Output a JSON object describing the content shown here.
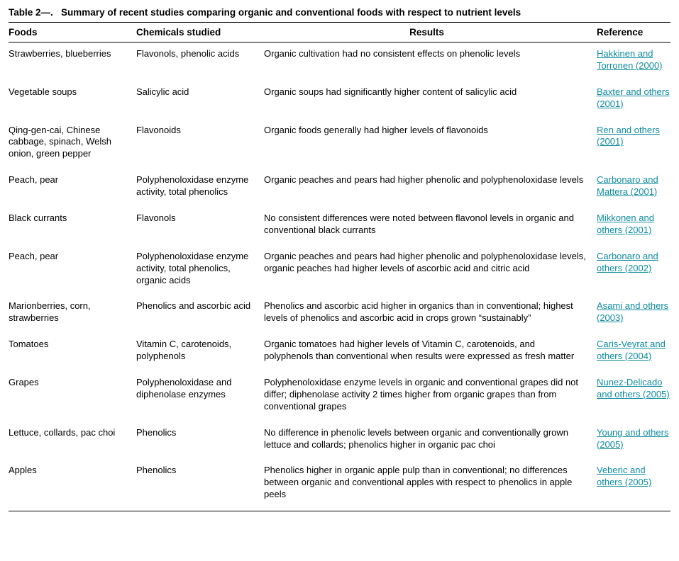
{
  "title_prefix": "Table 2—.",
  "title_text": "Summary of recent studies comparing organic and conventional foods with respect to nutrient levels",
  "link_color": "#0e8b9e",
  "text_color": "#000000",
  "background_color": "#ffffff",
  "columns": {
    "foods": "Foods",
    "chemicals": "Chemicals studied",
    "results": "Results",
    "reference": "Reference"
  },
  "rows": [
    {
      "foods": "Strawberries, blueberries",
      "chemicals": "Flavonols, phenolic acids",
      "results": "Organic cultivation had no consistent effects on phenolic levels",
      "reference": "Hakkinen and Torronen (2000)"
    },
    {
      "foods": "Vegetable soups",
      "chemicals": "Salicylic acid",
      "results": "Organic soups had significantly higher content of salicylic acid",
      "reference": "Baxter and others (2001)"
    },
    {
      "foods": "Qing-gen-cai, Chinese cabbage, spinach, Welsh onion, green pepper",
      "chemicals": "Flavonoids",
      "results": "Organic foods generally had higher levels of flavonoids",
      "reference": "Ren and others (2001)"
    },
    {
      "foods": "Peach, pear",
      "chemicals": "Polyphenoloxidase enzyme activity, total phenolics",
      "results": "Organic peaches and pears had higher phenolic and polyphenoloxidase levels",
      "reference": "Carbonaro and Mattera (2001)"
    },
    {
      "foods": "Black currants",
      "chemicals": "Flavonols",
      "results": "No consistent differences were noted between flavonol levels in organic and conventional black currants",
      "reference": "Mikkonen and others (2001)"
    },
    {
      "foods": "Peach, pear",
      "chemicals": "Polyphenoloxidase enzyme activity, total phenolics, organic acids",
      "results": "Organic peaches and pears had higher phenolic and polyphenoloxidase levels, organic peaches had higher levels of ascorbic acid and citric acid",
      "reference": "Carbonaro and others (2002)"
    },
    {
      "foods": "Marionberries, corn, strawberries",
      "chemicals": "Phenolics and ascorbic acid",
      "results": "Phenolics and ascorbic acid higher in organics than in conventional; highest levels of phenolics and ascorbic acid in crops grown “sustainably”",
      "reference": "Asami and others (2003)"
    },
    {
      "foods": "Tomatoes",
      "chemicals": "Vitamin C, carotenoids, polyphenols",
      "results": "Organic tomatoes had higher levels of Vitamin C, carotenoids, and polyphenols than conventional when results were expressed as fresh matter",
      "reference": "Caris-Veyrat and others (2004)"
    },
    {
      "foods": "Grapes",
      "chemicals": "Polyphenoloxidase and diphenolase enzymes",
      "results": "Polyphenoloxidase enzyme levels in organic and conventional grapes did not differ; diphenolase activity 2 times higher from organic grapes than from conventional grapes",
      "reference": "Nunez-Delicado and others (2005)"
    },
    {
      "foods": "Lettuce, collards, pac choi",
      "chemicals": "Phenolics",
      "results": "No difference in phenolic levels between organic and conventionally grown lettuce and collards; phenolics higher in organic pac choi",
      "reference": "Young and others (2005)"
    },
    {
      "foods": "Apples",
      "chemicals": "Phenolics",
      "results": "Phenolics higher in organic apple pulp than in conventional; no differences between organic and conventional apples with respect to phenolics in apple peels",
      "reference": "Veberic and others (2005)"
    }
  ]
}
